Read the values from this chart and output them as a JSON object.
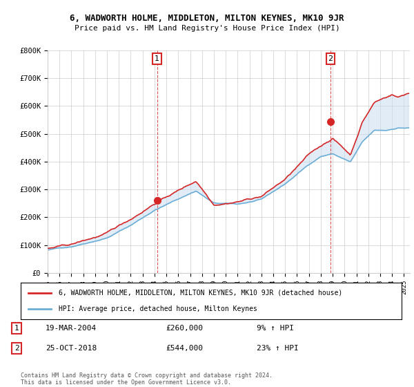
{
  "title": "6, WADWORTH HOLME, MIDDLETON, MILTON KEYNES, MK10 9JR",
  "subtitle": "Price paid vs. HM Land Registry's House Price Index (HPI)",
  "ytick_labels": [
    "£0",
    "£100K",
    "£200K",
    "£300K",
    "£400K",
    "£500K",
    "£600K",
    "£700K",
    "£800K"
  ],
  "yticks": [
    0,
    100000,
    200000,
    300000,
    400000,
    500000,
    600000,
    700000,
    800000
  ],
  "sale1_x": 2004.21,
  "sale1_y": 260000,
  "sale2_x": 2018.81,
  "sale2_y": 544000,
  "sale1_date": "19-MAR-2004",
  "sale1_price": "£260,000",
  "sale1_hpi": "9% ↑ HPI",
  "sale2_date": "25-OCT-2018",
  "sale2_price": "£544,000",
  "sale2_hpi": "23% ↑ HPI",
  "legend_line1": "6, WADWORTH HOLME, MIDDLETON, MILTON KEYNES, MK10 9JR (detached house)",
  "legend_line2": "HPI: Average price, detached house, Milton Keynes",
  "footer": "Contains HM Land Registry data © Crown copyright and database right 2024.\nThis data is licensed under the Open Government Licence v3.0.",
  "hpi_color": "#6baed6",
  "hpi_fill_color": "#c6dbef",
  "price_color": "#d62728",
  "bg_color": "#ffffff",
  "grid_color": "#cccccc",
  "vline_color": "#d62728",
  "xmin": 1995,
  "xmax": 2025.5,
  "ymin": 0,
  "ymax": 800000
}
